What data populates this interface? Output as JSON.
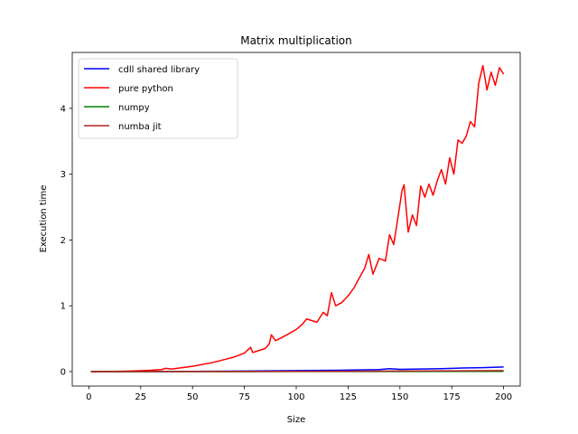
{
  "chart_data": {
    "type": "line",
    "title": "Matrix multiplication",
    "xlabel": "Size",
    "ylabel": "Execution time",
    "xlim": [
      -8,
      208
    ],
    "ylim": [
      -0.22,
      4.85
    ],
    "xticks": [
      0,
      25,
      50,
      75,
      100,
      125,
      150,
      175,
      200
    ],
    "yticks": [
      0,
      1,
      2,
      3,
      4
    ],
    "grid": false,
    "legend_position": "top-left",
    "series": [
      {
        "name": "cdll shared library",
        "color": "#0000ff",
        "x": [
          1,
          25,
          50,
          75,
          100,
          120,
          130,
          140,
          145,
          150,
          160,
          170,
          180,
          190,
          195,
          200
        ],
        "y": [
          0.0,
          0.002,
          0.004,
          0.008,
          0.015,
          0.02,
          0.025,
          0.03,
          0.045,
          0.035,
          0.04,
          0.045,
          0.055,
          0.06,
          0.065,
          0.07
        ]
      },
      {
        "name": "pure python",
        "color": "#ff0000",
        "x": [
          1,
          10,
          20,
          30,
          35,
          37,
          40,
          50,
          60,
          70,
          75,
          78,
          79,
          85,
          87,
          88,
          90,
          95,
          100,
          103,
          105,
          110,
          113,
          115,
          117,
          119,
          122,
          125,
          128,
          130,
          133,
          135,
          137,
          140,
          143,
          145,
          147,
          149,
          151,
          152,
          154,
          156,
          158,
          160,
          162,
          164,
          166,
          168,
          170,
          172,
          174,
          176,
          178,
          180,
          182,
          184,
          186,
          188,
          190,
          192,
          194,
          196,
          198,
          200
        ],
        "y": [
          0.0,
          0.002,
          0.008,
          0.02,
          0.03,
          0.05,
          0.04,
          0.08,
          0.14,
          0.22,
          0.28,
          0.37,
          0.29,
          0.35,
          0.42,
          0.56,
          0.47,
          0.55,
          0.64,
          0.72,
          0.8,
          0.75,
          0.9,
          0.85,
          1.2,
          1.0,
          1.05,
          1.15,
          1.28,
          1.4,
          1.57,
          1.78,
          1.48,
          1.72,
          1.68,
          2.08,
          1.93,
          2.33,
          2.75,
          2.84,
          2.12,
          2.38,
          2.22,
          2.82,
          2.65,
          2.85,
          2.68,
          2.9,
          3.07,
          2.85,
          3.25,
          3.0,
          3.52,
          3.47,
          3.58,
          3.8,
          3.72,
          4.38,
          4.65,
          4.28,
          4.55,
          4.35,
          4.62,
          4.52
        ]
      },
      {
        "name": "numpy",
        "color": "#008000",
        "x": [
          1,
          50,
          100,
          150,
          200
        ],
        "y": [
          0.0,
          0.0,
          0.001,
          0.002,
          0.003
        ]
      },
      {
        "name": "numba jit",
        "color": "#b22222",
        "x": [
          1,
          50,
          100,
          150,
          200
        ],
        "y": [
          0.0,
          0.001,
          0.003,
          0.008,
          0.015
        ]
      }
    ]
  }
}
